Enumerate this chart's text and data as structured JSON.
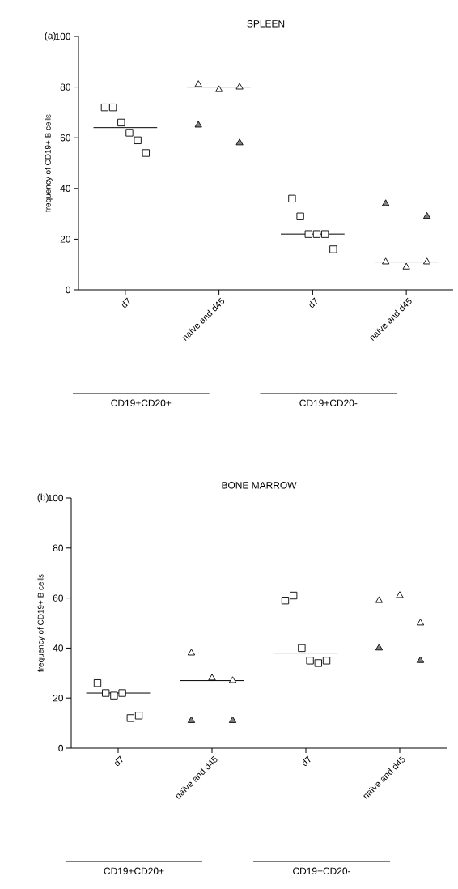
{
  "chart_data": [
    {
      "type": "scatter",
      "title": "SPLEEN",
      "ylabel": "frequency of CD19+ B cells",
      "annotations": [
        "(a)",
        "CD19+CD20+",
        "CD19+CD20-"
      ],
      "categories": [
        "d7",
        "naïve and d45",
        "d7",
        "naïve and d45"
      ],
      "ylim": [
        0,
        100
      ],
      "yticks": [
        0,
        20,
        40,
        60,
        80,
        100
      ],
      "grid": false,
      "series": [
        {
          "marker": "square",
          "color": "#ffffff",
          "values": [
            72,
            null,
            36,
            null
          ]
        },
        {
          "marker": "square",
          "color": "#ffffff",
          "values": [
            72,
            null,
            29,
            null
          ]
        },
        {
          "marker": "square",
          "color": "#ffffff",
          "values": [
            66,
            null,
            22,
            null
          ]
        },
        {
          "marker": "square",
          "color": "#ffffff",
          "values": [
            62,
            null,
            22,
            null
          ]
        },
        {
          "marker": "square",
          "color": "#ffffff",
          "values": [
            59,
            null,
            22,
            null
          ]
        },
        {
          "marker": "square",
          "color": "#ffffff",
          "values": [
            54,
            null,
            16,
            null
          ]
        },
        {
          "marker": "triangle",
          "color": "#ffffff",
          "values": [
            null,
            81,
            null,
            11
          ]
        },
        {
          "marker": "triangle",
          "color": "#ffffff",
          "values": [
            null,
            79,
            null,
            9
          ]
        },
        {
          "marker": "triangle",
          "color": "#ffffff",
          "values": [
            null,
            80,
            null,
            11
          ]
        },
        {
          "marker": "triangle",
          "color": "#808080",
          "values": [
            null,
            65,
            null,
            34
          ]
        },
        {
          "marker": "triangle",
          "color": "#808080",
          "values": [
            null,
            58,
            null,
            29
          ]
        }
      ],
      "ref_lines": [
        {
          "axis": "y",
          "value": 64,
          "color": "#000000"
        },
        {
          "axis": "y",
          "value": 80,
          "color": "#000000"
        },
        {
          "axis": "y",
          "value": 22,
          "color": "#000000"
        },
        {
          "axis": "y",
          "value": 11,
          "color": "#000000"
        }
      ]
    },
    {
      "type": "scatter",
      "title": "BONE MARROW",
      "ylabel": "frequency of CD19+ B cells",
      "annotations": [
        "(b)",
        "CD19+CD20+",
        "CD19+CD20-"
      ],
      "categories": [
        "d7",
        "naïve and  d45",
        "d7",
        "naïve and  d45"
      ],
      "ylim": [
        0,
        100
      ],
      "yticks": [
        0,
        20,
        40,
        60,
        80,
        100
      ],
      "grid": false,
      "series": [
        {
          "marker": "square",
          "color": "#ffffff",
          "values": [
            26,
            null,
            59,
            null
          ]
        },
        {
          "marker": "square",
          "color": "#ffffff",
          "values": [
            22,
            null,
            61,
            null
          ]
        },
        {
          "marker": "square",
          "color": "#ffffff",
          "values": [
            21,
            null,
            40,
            null
          ]
        },
        {
          "marker": "square",
          "color": "#ffffff",
          "values": [
            22,
            null,
            35,
            null
          ]
        },
        {
          "marker": "square",
          "color": "#ffffff",
          "values": [
            12,
            null,
            34,
            null
          ]
        },
        {
          "marker": "square",
          "color": "#ffffff",
          "values": [
            13,
            null,
            35,
            null
          ]
        },
        {
          "marker": "triangle",
          "color": "#ffffff",
          "values": [
            null,
            38,
            null,
            59
          ]
        },
        {
          "marker": "triangle",
          "color": "#ffffff",
          "values": [
            null,
            28,
            null,
            61
          ]
        },
        {
          "marker": "triangle",
          "color": "#ffffff",
          "values": [
            null,
            27,
            null,
            50
          ]
        },
        {
          "marker": "triangle",
          "color": "#808080",
          "values": [
            null,
            11,
            null,
            40
          ]
        },
        {
          "marker": "triangle",
          "color": "#808080",
          "values": [
            null,
            11,
            null,
            35
          ]
        }
      ],
      "ref_lines": [
        {
          "axis": "y",
          "value": 22,
          "color": "#000000"
        },
        {
          "axis": "y",
          "value": 27,
          "color": "#000000"
        },
        {
          "axis": "y",
          "value": 38,
          "color": "#000000"
        },
        {
          "axis": "y",
          "value": 50,
          "color": "#000000"
        }
      ]
    }
  ]
}
